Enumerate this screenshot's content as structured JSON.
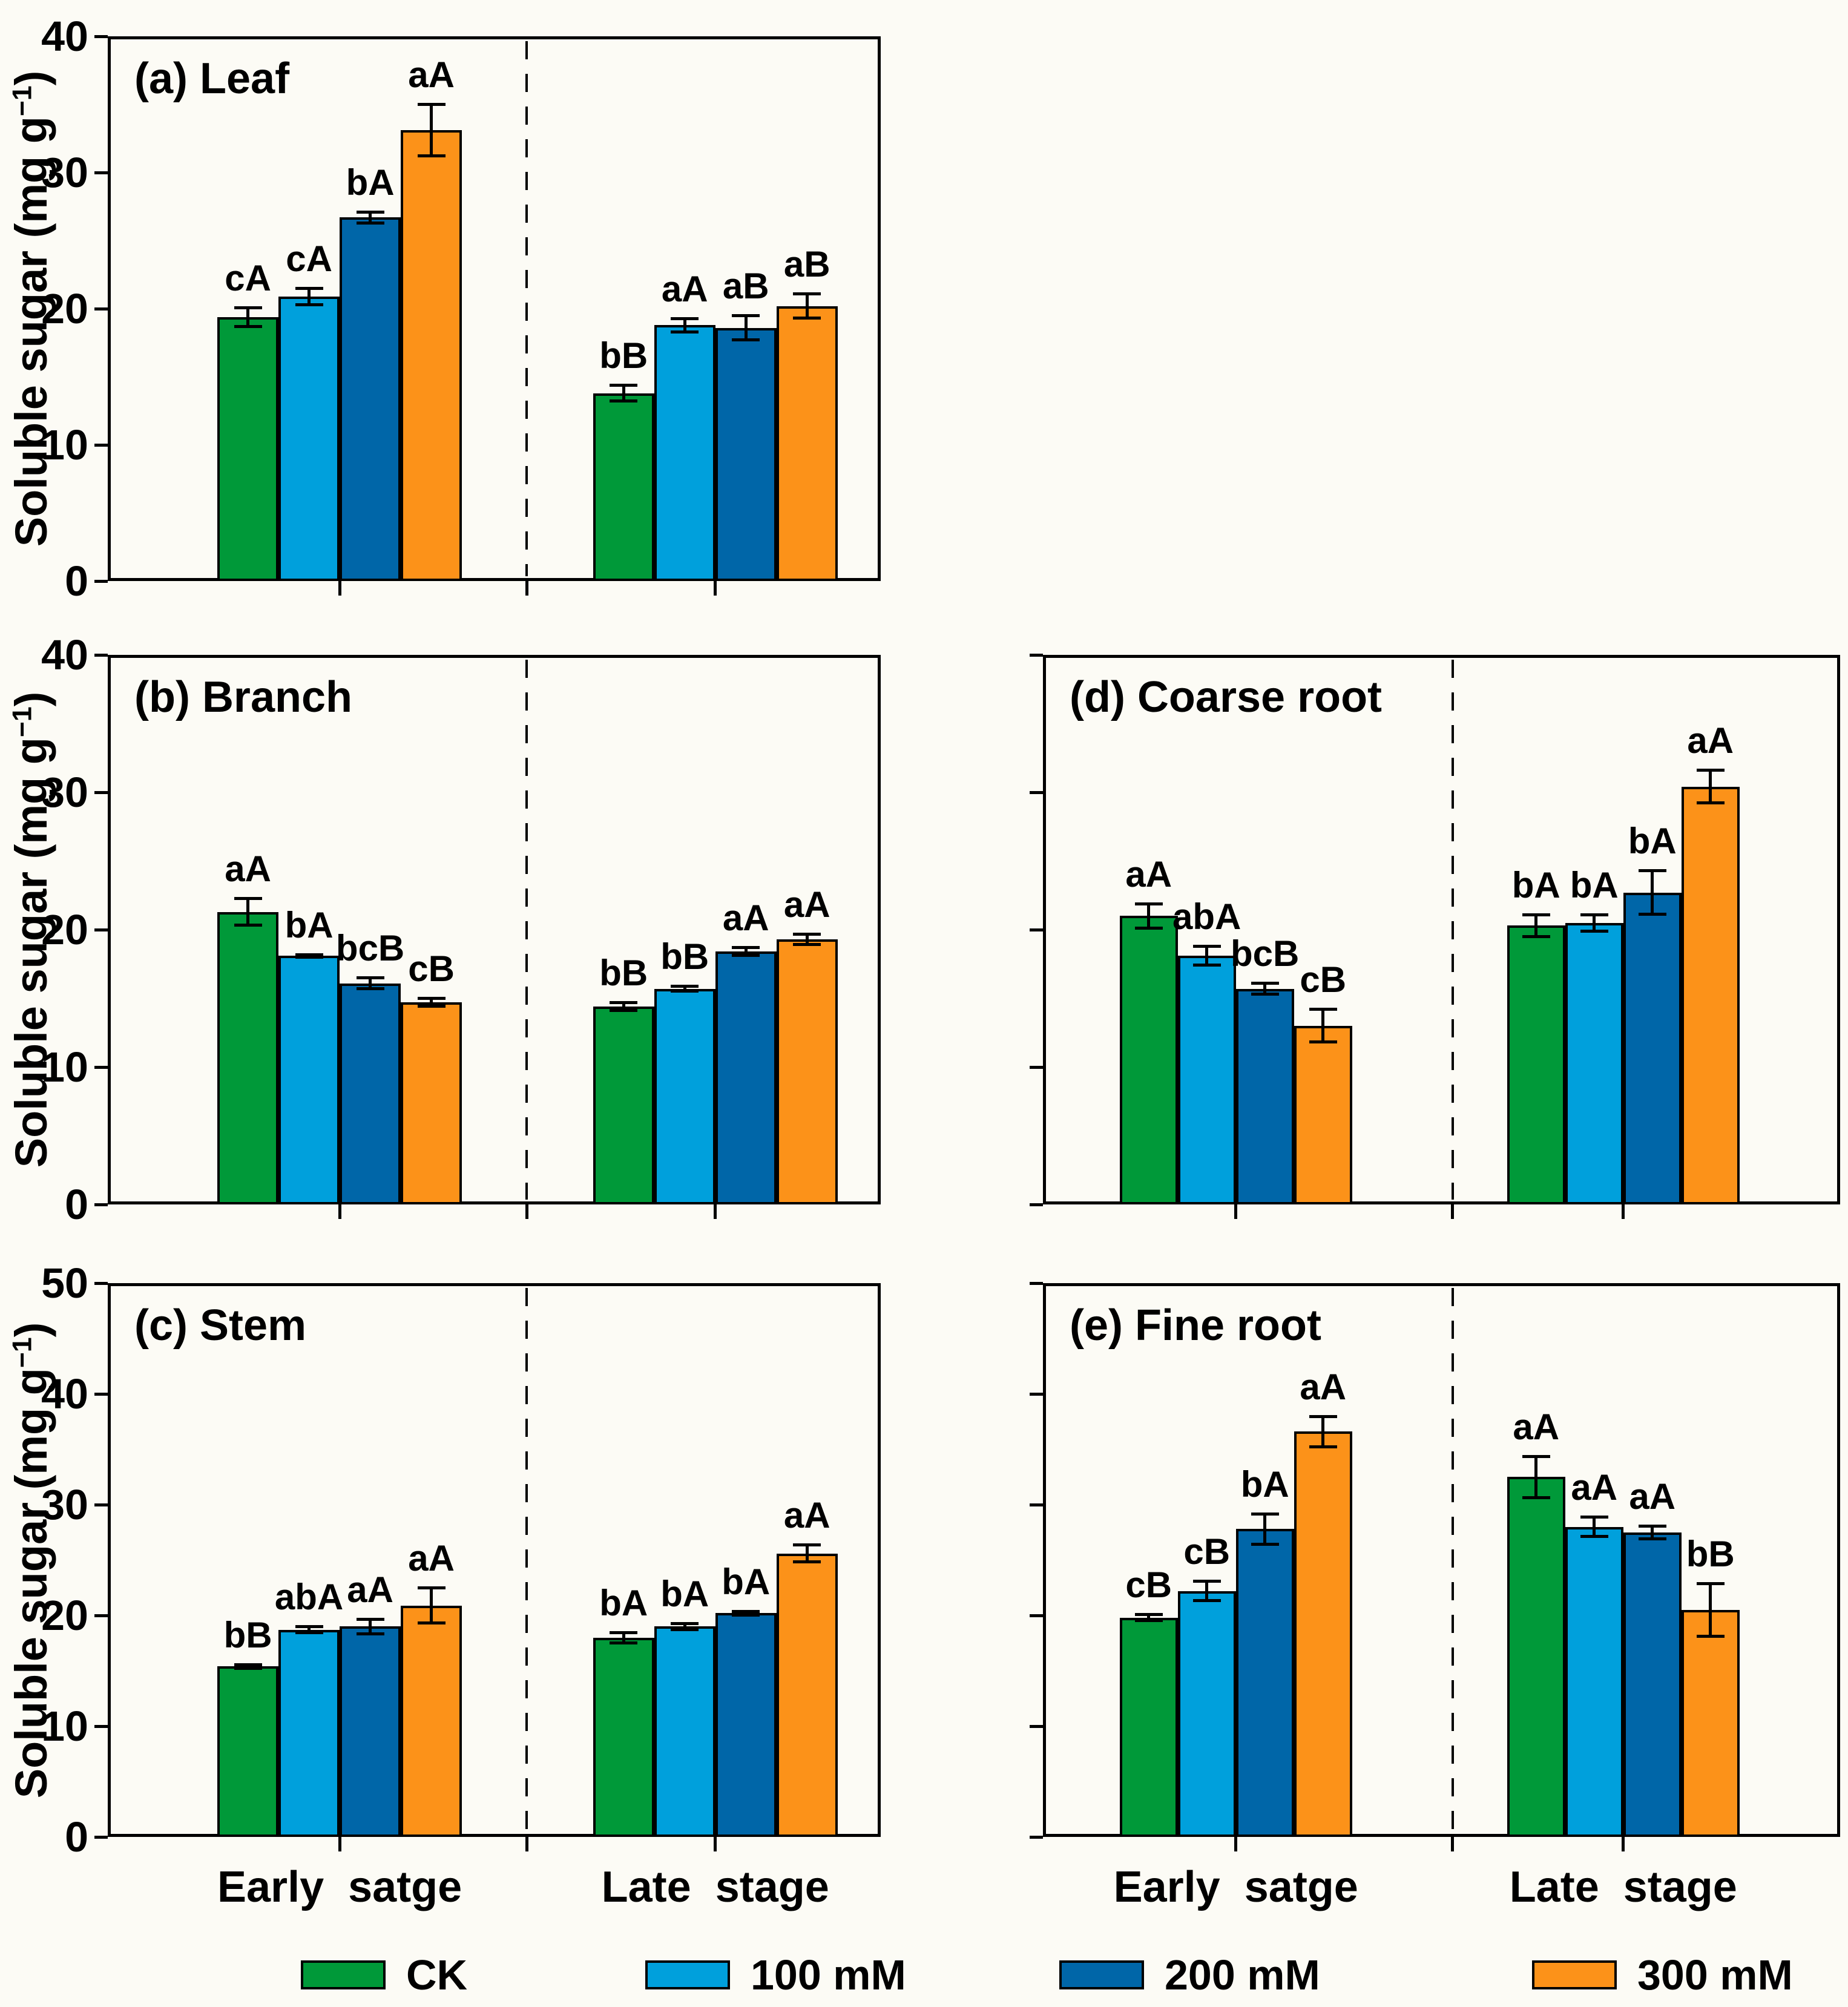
{
  "ylabel": {
    "pre": "Soluble sugar (mg g",
    "sup": "−1",
    "post": ")"
  },
  "x_group_labels": [
    "Early  satge",
    "Late  stage"
  ],
  "treatments": [
    "CK",
    "100 mM",
    "200 mM",
    "300 mM"
  ],
  "colors": {
    "CK": "#009939",
    "100 mM": "#00A0DC",
    "200 mM": "#0066A8",
    "300 mM": "#FC9219"
  },
  "legend": {
    "items": [
      {
        "label": "CK",
        "color": "#009939"
      },
      {
        "label": "100 mM",
        "color": "#00A0DC"
      },
      {
        "label": "200 mM",
        "color": "#0066A8"
      },
      {
        "label": "300 mM",
        "color": "#FC9219"
      }
    ]
  },
  "chart_data": [
    {
      "id": "a",
      "title": "(a) Leaf",
      "type": "bar",
      "ylim": [
        0,
        40
      ],
      "yticks": [
        0,
        10,
        20,
        30,
        40
      ],
      "ytick_labels": true,
      "ylabel_shown": true,
      "categories": [
        "Early satge",
        "Late stage"
      ],
      "series": [
        {
          "name": "CK",
          "values": [
            19.4,
            13.8
          ],
          "errors": [
            0.8,
            0.7
          ],
          "sig": [
            "cA",
            "bB"
          ]
        },
        {
          "name": "100 mM",
          "values": [
            20.9,
            18.8
          ],
          "errors": [
            0.7,
            0.6
          ],
          "sig": [
            "cA",
            "aA"
          ]
        },
        {
          "name": "200 mM",
          "values": [
            26.7,
            18.6
          ],
          "errors": [
            0.5,
            1.0
          ],
          "sig": [
            "bA",
            "aB"
          ]
        },
        {
          "name": "300 mM",
          "values": [
            33.1,
            20.2
          ],
          "errors": [
            2.0,
            1.0
          ],
          "sig": [
            "aA",
            "aB"
          ]
        }
      ]
    },
    {
      "id": "b",
      "title": "(b) Branch",
      "type": "bar",
      "ylim": [
        0,
        40
      ],
      "yticks": [
        0,
        10,
        20,
        30,
        40
      ],
      "ytick_labels": true,
      "ylabel_shown": true,
      "categories": [
        "Early satge",
        "Late stage"
      ],
      "series": [
        {
          "name": "CK",
          "values": [
            21.3,
            14.4
          ],
          "errors": [
            1.1,
            0.4
          ],
          "sig": [
            "aA",
            "bB"
          ]
        },
        {
          "name": "100 mM",
          "values": [
            18.1,
            15.7
          ],
          "errors": [
            0.2,
            0.3
          ],
          "sig": [
            "bA",
            "bB"
          ]
        },
        {
          "name": "200 mM",
          "values": [
            16.1,
            18.4
          ],
          "errors": [
            0.5,
            0.4
          ],
          "sig": [
            "bcB",
            "aA"
          ]
        },
        {
          "name": "300 mM",
          "values": [
            14.7,
            19.3
          ],
          "errors": [
            0.4,
            0.5
          ],
          "sig": [
            "cB",
            "aA"
          ]
        }
      ]
    },
    {
      "id": "c",
      "title": "(c) Stem",
      "type": "bar",
      "ylim": [
        0,
        50
      ],
      "yticks": [
        0,
        10,
        20,
        30,
        40,
        50
      ],
      "ytick_labels": true,
      "ylabel_shown": true,
      "categories": [
        "Early satge",
        "Late stage"
      ],
      "series": [
        {
          "name": "CK",
          "values": [
            15.4,
            18.0
          ],
          "errors": [
            0.3,
            0.6
          ],
          "sig": [
            "bB",
            "bA"
          ]
        },
        {
          "name": "100 mM",
          "values": [
            18.7,
            19.0
          ],
          "errors": [
            0.4,
            0.4
          ],
          "sig": [
            "abA",
            "bA"
          ]
        },
        {
          "name": "200 mM",
          "values": [
            19.0,
            20.2
          ],
          "errors": [
            0.8,
            0.3
          ],
          "sig": [
            "aA",
            "bA"
          ]
        },
        {
          "name": "300 mM",
          "values": [
            20.9,
            25.6
          ],
          "errors": [
            1.7,
            0.9
          ],
          "sig": [
            "aA",
            "aA"
          ]
        }
      ]
    },
    {
      "id": "d",
      "title": "(d) Coarse root",
      "type": "bar",
      "ylim": [
        0,
        40
      ],
      "yticks": [
        0,
        10,
        20,
        30,
        40
      ],
      "ytick_labels": false,
      "ylabel_shown": false,
      "categories": [
        "Early satge",
        "Late stage"
      ],
      "series": [
        {
          "name": "CK",
          "values": [
            21.0,
            20.3
          ],
          "errors": [
            1.0,
            0.9
          ],
          "sig": [
            "aA",
            "bA"
          ]
        },
        {
          "name": "100 mM",
          "values": [
            18.1,
            20.5
          ],
          "errors": [
            0.8,
            0.7
          ],
          "sig": [
            "abA",
            "bA"
          ]
        },
        {
          "name": "200 mM",
          "values": [
            15.7,
            22.7
          ],
          "errors": [
            0.5,
            1.7
          ],
          "sig": [
            "bcB",
            "bA"
          ]
        },
        {
          "name": "300 mM",
          "values": [
            13.0,
            30.4
          ],
          "errors": [
            1.3,
            1.3
          ],
          "sig": [
            "cB",
            "aA"
          ]
        }
      ]
    },
    {
      "id": "e",
      "title": "(e) Fine root",
      "type": "bar",
      "ylim": [
        0,
        50
      ],
      "yticks": [
        0,
        10,
        20,
        30,
        40,
        50
      ],
      "ytick_labels": false,
      "ylabel_shown": false,
      "categories": [
        "Early satge",
        "Late stage"
      ],
      "series": [
        {
          "name": "CK",
          "values": [
            19.8,
            32.5
          ],
          "errors": [
            0.4,
            2.0
          ],
          "sig": [
            "cB",
            "aA"
          ]
        },
        {
          "name": "100 mM",
          "values": [
            22.2,
            28.0
          ],
          "errors": [
            1.0,
            1.0
          ],
          "sig": [
            "cB",
            "aA"
          ]
        },
        {
          "name": "200 mM",
          "values": [
            27.8,
            27.5
          ],
          "errors": [
            1.5,
            0.7
          ],
          "sig": [
            "bA",
            "aA"
          ]
        },
        {
          "name": "300 mM",
          "values": [
            36.6,
            20.5
          ],
          "errors": [
            1.5,
            2.5
          ],
          "sig": [
            "aA",
            "bB"
          ]
        }
      ]
    }
  ]
}
